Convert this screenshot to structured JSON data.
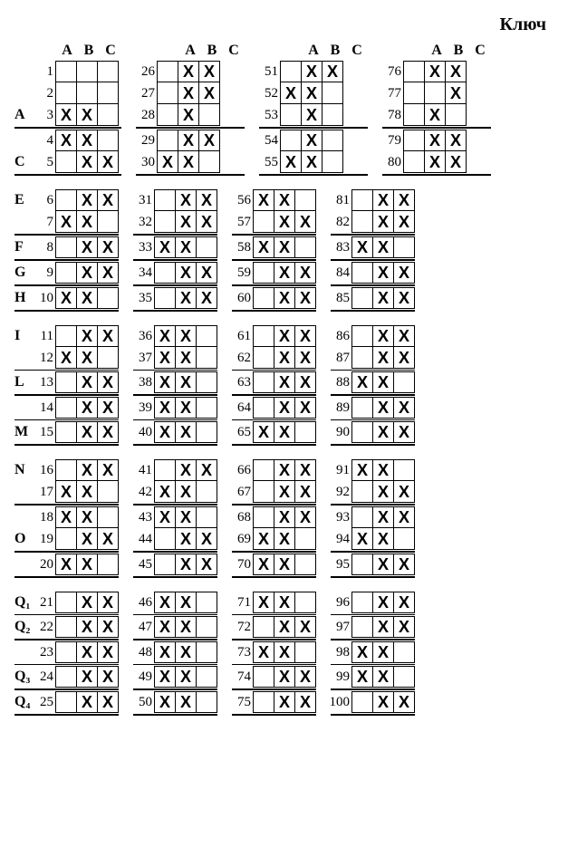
{
  "title": "Ключ",
  "headers": [
    "A",
    "B",
    "C"
  ],
  "mark": "X",
  "blockCount": 5,
  "columnCount": 4,
  "rowsPerBlock": 5,
  "rowLabels": {
    "3": "A",
    "5": "C",
    "6": "E",
    "8": "F",
    "9": "G",
    "10": "H",
    "11": "I",
    "13": "L",
    "15": "M",
    "16": "N",
    "19": "O",
    "21": "Q₁",
    "22": "Q₂",
    "24": "Q₃",
    "25": "Q₄"
  },
  "seps": {
    "0": {
      "after": [
        3
      ],
      "afterFull": [
        3
      ]
    },
    "1": {
      "after": [
        7,
        8,
        9
      ],
      "afterFull": [
        7,
        8,
        9
      ]
    },
    "2": {
      "after": [
        12,
        13,
        14
      ],
      "afterFull": [
        13
      ]
    },
    "3": {
      "after": [
        17,
        19
      ],
      "afterFull": [
        17,
        19
      ]
    },
    "4": {
      "after": [
        21,
        22,
        23,
        24
      ],
      "afterFull": [
        22,
        24
      ]
    }
  },
  "answers": {
    "1": [
      0,
      0,
      0
    ],
    "2": [
      0,
      0,
      0
    ],
    "3": [
      1,
      1,
      0
    ],
    "4": [
      1,
      1,
      0
    ],
    "5": [
      0,
      1,
      1
    ],
    "6": [
      0,
      1,
      1
    ],
    "7": [
      1,
      1,
      0
    ],
    "8": [
      0,
      1,
      1
    ],
    "9": [
      0,
      1,
      1
    ],
    "10": [
      1,
      1,
      0
    ],
    "11": [
      0,
      1,
      1
    ],
    "12": [
      1,
      1,
      0
    ],
    "13": [
      0,
      1,
      1
    ],
    "14": [
      0,
      1,
      1
    ],
    "15": [
      0,
      1,
      1
    ],
    "16": [
      0,
      1,
      1
    ],
    "17": [
      1,
      1,
      0
    ],
    "18": [
      1,
      1,
      0
    ],
    "19": [
      0,
      1,
      1
    ],
    "20": [
      1,
      1,
      0
    ],
    "21": [
      0,
      1,
      1
    ],
    "22": [
      0,
      1,
      1
    ],
    "23": [
      0,
      1,
      1
    ],
    "24": [
      0,
      1,
      1
    ],
    "25": [
      0,
      1,
      1
    ],
    "26": [
      0,
      1,
      1
    ],
    "27": [
      0,
      1,
      1
    ],
    "28": [
      0,
      1,
      0
    ],
    "29": [
      0,
      1,
      1
    ],
    "30": [
      1,
      1,
      0
    ],
    "31": [
      0,
      1,
      1
    ],
    "32": [
      0,
      1,
      1
    ],
    "33": [
      1,
      1,
      0
    ],
    "34": [
      0,
      1,
      1
    ],
    "35": [
      0,
      1,
      1
    ],
    "36": [
      1,
      1,
      0
    ],
    "37": [
      1,
      1,
      0
    ],
    "38": [
      1,
      1,
      0
    ],
    "39": [
      1,
      1,
      0
    ],
    "40": [
      1,
      1,
      0
    ],
    "41": [
      0,
      1,
      1
    ],
    "42": [
      1,
      1,
      0
    ],
    "43": [
      1,
      1,
      0
    ],
    "44": [
      0,
      1,
      1
    ],
    "45": [
      0,
      1,
      1
    ],
    "46": [
      1,
      1,
      0
    ],
    "47": [
      1,
      1,
      0
    ],
    "48": [
      1,
      1,
      0
    ],
    "49": [
      1,
      1,
      0
    ],
    "50": [
      1,
      1,
      0
    ],
    "51": [
      0,
      1,
      1
    ],
    "52": [
      1,
      1,
      0
    ],
    "53": [
      0,
      1,
      0
    ],
    "54": [
      0,
      1,
      0
    ],
    "55": [
      1,
      1,
      0
    ],
    "56": [
      1,
      1,
      0
    ],
    "57": [
      0,
      1,
      1
    ],
    "58": [
      1,
      1,
      0
    ],
    "59": [
      0,
      1,
      1
    ],
    "60": [
      0,
      1,
      1
    ],
    "61": [
      0,
      1,
      1
    ],
    "62": [
      0,
      1,
      1
    ],
    "63": [
      0,
      1,
      1
    ],
    "64": [
      0,
      1,
      1
    ],
    "65": [
      1,
      1,
      0
    ],
    "66": [
      0,
      1,
      1
    ],
    "67": [
      0,
      1,
      1
    ],
    "68": [
      0,
      1,
      1
    ],
    "69": [
      1,
      1,
      0
    ],
    "70": [
      1,
      1,
      0
    ],
    "71": [
      1,
      1,
      0
    ],
    "72": [
      0,
      1,
      1
    ],
    "73": [
      1,
      1,
      0
    ],
    "74": [
      0,
      1,
      1
    ],
    "75": [
      0,
      1,
      1
    ],
    "76": [
      0,
      1,
      1
    ],
    "77": [
      0,
      0,
      1
    ],
    "78": [
      0,
      1,
      0
    ],
    "79": [
      0,
      1,
      1
    ],
    "80": [
      0,
      1,
      1
    ],
    "81": [
      0,
      1,
      1
    ],
    "82": [
      0,
      1,
      1
    ],
    "83": [
      1,
      1,
      0
    ],
    "84": [
      0,
      1,
      1
    ],
    "85": [
      0,
      1,
      1
    ],
    "86": [
      0,
      1,
      1
    ],
    "87": [
      0,
      1,
      1
    ],
    "88": [
      1,
      1,
      0
    ],
    "89": [
      0,
      1,
      1
    ],
    "90": [
      0,
      1,
      1
    ],
    "91": [
      1,
      1,
      0
    ],
    "92": [
      0,
      1,
      1
    ],
    "93": [
      0,
      1,
      1
    ],
    "94": [
      1,
      1,
      0
    ],
    "95": [
      0,
      1,
      1
    ],
    "96": [
      0,
      1,
      1
    ],
    "97": [
      0,
      1,
      1
    ],
    "98": [
      1,
      1,
      0
    ],
    "99": [
      1,
      1,
      0
    ],
    "100": [
      0,
      1,
      1
    ]
  }
}
